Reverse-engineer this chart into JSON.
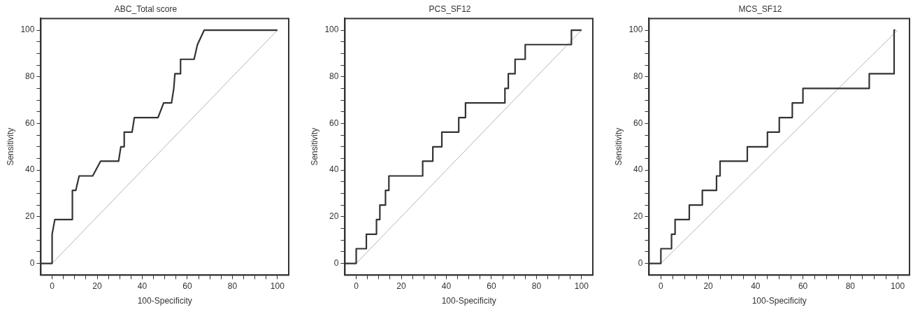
{
  "chart_data": [
    {
      "type": "line",
      "title": "ABC_Total score",
      "xlabel": "100-Specificity",
      "ylabel": "Sensitivity",
      "xlim": [
        -5,
        105
      ],
      "ylim": [
        -5,
        105
      ],
      "grid": false,
      "legend": false,
      "marker": "none",
      "xticks": [
        0,
        {
          "value": 5,
          "label": null
        },
        {
          "value": 10,
          "label": null
        },
        {
          "value": 15,
          "label": null
        },
        20,
        {
          "value": 25,
          "label": null
        },
        {
          "value": 30,
          "label": null
        },
        {
          "value": 35,
          "label": null
        },
        40,
        {
          "value": 45,
          "label": null
        },
        {
          "value": 50,
          "label": null
        },
        {
          "value": 55,
          "label": null
        },
        60,
        {
          "value": 65,
          "label": null
        },
        {
          "value": 70,
          "label": null
        },
        {
          "value": 75,
          "label": null
        },
        80,
        {
          "value": 85,
          "label": null
        },
        {
          "value": 90,
          "label": null
        },
        {
          "value": 95,
          "label": null
        },
        100
      ],
      "yticks": [
        0,
        {
          "value": 5,
          "label": null
        },
        {
          "value": 10,
          "label": null
        },
        {
          "value": 15,
          "label": null
        },
        20,
        {
          "value": 25,
          "label": null
        },
        {
          "value": 30,
          "label": null
        },
        {
          "value": 35,
          "label": null
        },
        40,
        {
          "value": 45,
          "label": null
        },
        {
          "value": 50,
          "label": null
        },
        {
          "value": 55,
          "label": null
        },
        60,
        {
          "value": 65,
          "label": null
        },
        {
          "value": 70,
          "label": null
        },
        {
          "value": 75,
          "label": null
        },
        80,
        {
          "value": 85,
          "label": null
        },
        {
          "value": 90,
          "label": null
        },
        {
          "value": 95,
          "label": null
        },
        100
      ],
      "series": [
        {
          "color": "#333333",
          "x": [
            -5,
            0,
            0,
            1.2,
            9,
            9,
            10.5,
            12,
            18,
            21.5,
            29.5,
            30.5,
            31.5,
            32,
            32,
            35.5,
            36.5,
            47,
            49.5,
            53,
            54,
            54.5,
            57,
            57,
            63,
            64.5,
            67.5,
            100
          ],
          "values": [
            0,
            0,
            12.5,
            18.8,
            18.8,
            31.3,
            31.3,
            37.5,
            37.5,
            43.8,
            43.8,
            50,
            50,
            50,
            56.3,
            56.3,
            62.5,
            62.5,
            68.8,
            68.8,
            75,
            81.3,
            81.3,
            87.5,
            87.5,
            93.8,
            100,
            100
          ]
        },
        {
          "color": "#b4b4b4",
          "x": [
            0,
            100
          ],
          "values": [
            0,
            100
          ]
        }
      ]
    },
    {
      "type": "line",
      "title": "PCS_SF12",
      "xlabel": "100-Specificity",
      "ylabel": "Sensitivity",
      "xlim": [
        -5,
        105
      ],
      "ylim": [
        -5,
        105
      ],
      "grid": false,
      "legend": false,
      "marker": "none",
      "xticks": [
        0,
        {
          "value": 5,
          "label": null
        },
        {
          "value": 10,
          "label": null
        },
        {
          "value": 15,
          "label": null
        },
        20,
        {
          "value": 25,
          "label": null
        },
        {
          "value": 30,
          "label": null
        },
        {
          "value": 35,
          "label": null
        },
        40,
        {
          "value": 45,
          "label": null
        },
        {
          "value": 50,
          "label": null
        },
        {
          "value": 55,
          "label": null
        },
        60,
        {
          "value": 65,
          "label": null
        },
        {
          "value": 70,
          "label": null
        },
        {
          "value": 75,
          "label": null
        },
        80,
        {
          "value": 85,
          "label": null
        },
        {
          "value": 90,
          "label": null
        },
        {
          "value": 95,
          "label": null
        },
        100
      ],
      "yticks": [
        0,
        {
          "value": 5,
          "label": null
        },
        {
          "value": 10,
          "label": null
        },
        {
          "value": 15,
          "label": null
        },
        20,
        {
          "value": 25,
          "label": null
        },
        {
          "value": 30,
          "label": null
        },
        {
          "value": 35,
          "label": null
        },
        40,
        {
          "value": 45,
          "label": null
        },
        {
          "value": 50,
          "label": null
        },
        {
          "value": 55,
          "label": null
        },
        60,
        {
          "value": 65,
          "label": null
        },
        {
          "value": 70,
          "label": null
        },
        {
          "value": 75,
          "label": null
        },
        80,
        {
          "value": 85,
          "label": null
        },
        {
          "value": 90,
          "label": null
        },
        {
          "value": 95,
          "label": null
        },
        100
      ],
      "series": [
        {
          "color": "#333333",
          "x": [
            -5,
            0,
            0,
            4.5,
            4.5,
            9,
            9,
            10.5,
            10.5,
            13,
            13,
            14.5,
            14.5,
            29.5,
            29.5,
            34,
            34,
            38,
            38,
            45.5,
            45.5,
            48.5,
            48.5,
            66,
            66,
            67.5,
            67.5,
            70.5,
            70.5,
            75,
            75,
            95.5,
            95.5,
            100
          ],
          "values": [
            0,
            0,
            6.3,
            6.3,
            12.5,
            12.5,
            18.8,
            18.8,
            25,
            25,
            31.3,
            31.3,
            37.5,
            37.5,
            43.8,
            43.8,
            50,
            50,
            56.3,
            56.3,
            62.5,
            62.5,
            68.8,
            68.8,
            75,
            75,
            81.3,
            81.3,
            87.5,
            87.5,
            93.8,
            93.8,
            100,
            100
          ]
        },
        {
          "color": "#b4b4b4",
          "x": [
            0,
            100
          ],
          "values": [
            0,
            100
          ]
        }
      ]
    },
    {
      "type": "line",
      "title": "MCS_SF12",
      "xlabel": "100-Specificity",
      "ylabel": "Sensitivity",
      "xlim": [
        -5,
        105
      ],
      "ylim": [
        -5,
        105
      ],
      "grid": false,
      "legend": false,
      "marker": "none",
      "xticks": [
        0,
        {
          "value": 5,
          "label": null
        },
        {
          "value": 10,
          "label": null
        },
        {
          "value": 15,
          "label": null
        },
        20,
        {
          "value": 25,
          "label": null
        },
        {
          "value": 30,
          "label": null
        },
        {
          "value": 35,
          "label": null
        },
        40,
        {
          "value": 45,
          "label": null
        },
        {
          "value": 50,
          "label": null
        },
        {
          "value": 55,
          "label": null
        },
        60,
        {
          "value": 65,
          "label": null
        },
        {
          "value": 70,
          "label": null
        },
        {
          "value": 75,
          "label": null
        },
        80,
        {
          "value": 85,
          "label": null
        },
        {
          "value": 90,
          "label": null
        },
        {
          "value": 95,
          "label": null
        },
        100
      ],
      "yticks": [
        0,
        {
          "value": 5,
          "label": null
        },
        {
          "value": 10,
          "label": null
        },
        {
          "value": 15,
          "label": null
        },
        20,
        {
          "value": 25,
          "label": null
        },
        {
          "value": 30,
          "label": null
        },
        {
          "value": 35,
          "label": null
        },
        40,
        {
          "value": 45,
          "label": null
        },
        {
          "value": 50,
          "label": null
        },
        {
          "value": 55,
          "label": null
        },
        60,
        {
          "value": 65,
          "label": null
        },
        {
          "value": 70,
          "label": null
        },
        {
          "value": 75,
          "label": null
        },
        80,
        {
          "value": 85,
          "label": null
        },
        {
          "value": 90,
          "label": null
        },
        {
          "value": 95,
          "label": null
        },
        100
      ],
      "series": [
        {
          "color": "#333333",
          "x": [
            -5,
            0,
            0,
            4.5,
            4.5,
            6,
            6,
            12,
            12,
            17.5,
            17.5,
            23.5,
            23.5,
            25,
            25,
            36.5,
            36.5,
            45,
            45,
            50,
            50,
            55.5,
            55.5,
            60,
            60,
            88,
            88,
            98.5,
            98.5,
            99
          ],
          "values": [
            0,
            0,
            6.3,
            6.3,
            12.5,
            12.5,
            18.8,
            18.8,
            25,
            25,
            31.3,
            31.3,
            37.5,
            37.5,
            43.8,
            43.8,
            50,
            50,
            56.3,
            56.3,
            62.5,
            62.5,
            68.8,
            68.8,
            75,
            75,
            81.3,
            81.3,
            100,
            100
          ]
        },
        {
          "color": "#b4b4b4",
          "x": [
            0,
            100
          ],
          "values": [
            0,
            100
          ]
        }
      ]
    }
  ]
}
